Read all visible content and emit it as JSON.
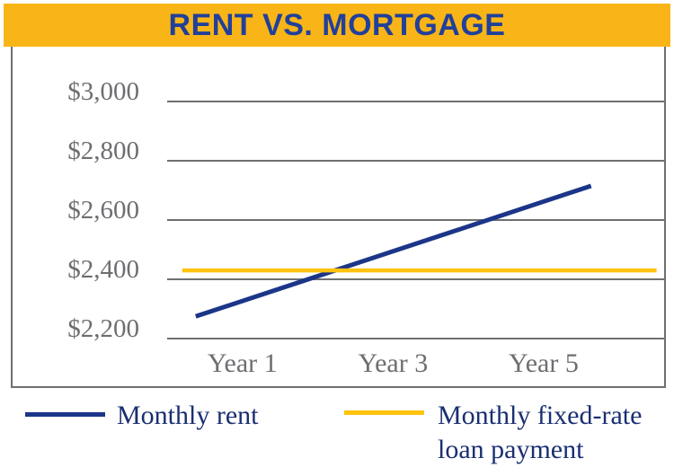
{
  "colors": {
    "gold_bar": "#F9B517",
    "line_yellow": "#FFC20E",
    "line_navy": "#1B3688",
    "title_navy": "#21409A",
    "legend_navy": "#1A2F72",
    "grid_gray": "#6E6F72",
    "label_gray": "#6D6E71"
  },
  "header": {
    "title": "RENT VS. MORTGAGE"
  },
  "chart_data": {
    "type": "line",
    "title": "RENT VS. MORTGAGE",
    "xlabel": "",
    "ylabel": "",
    "x_axis": {
      "unit": "year",
      "range": [
        0,
        6.6
      ],
      "ticks": [
        {
          "label": "Year 1",
          "year": 1
        },
        {
          "label": "Year 3",
          "year": 3
        },
        {
          "label": "Year 5",
          "year": 5
        }
      ]
    },
    "y_axis": {
      "unit": "$ per month",
      "range": [
        2200,
        3000
      ],
      "gridline_step": 200,
      "ticks": [
        {
          "label": "$3,000",
          "value": 3000
        },
        {
          "label": "$2,800",
          "value": 2800
        },
        {
          "label": "$2,600",
          "value": 2600
        },
        {
          "label": "$2,400",
          "value": 2400
        },
        {
          "label": "$2,200",
          "value": 2200
        }
      ]
    },
    "series": [
      {
        "name": "Monthly rent",
        "color": "#1B3688",
        "stroke_width": 5,
        "points": [
          {
            "year": 0.38,
            "value": 2275
          },
          {
            "year": 5.63,
            "value": 2715
          }
        ]
      },
      {
        "name": "Monthly fixed-rate loan payment",
        "color": "#FFC20E",
        "stroke_width": 4.5,
        "points": [
          {
            "year": 0.2,
            "value": 2430
          },
          {
            "year": 6.5,
            "value": 2430
          }
        ]
      }
    ],
    "legend_position": "bottom",
    "grid": "horizontal-only",
    "annotations": "Rising rent line crosses flat fixed-rate loan payment line shortly before Year 3"
  },
  "legend": {
    "items": [
      {
        "label": "Monthly rent",
        "color": "#1B3688"
      },
      {
        "label": "Monthly fixed-rate loan payment",
        "color": "#FFC20E"
      }
    ]
  }
}
